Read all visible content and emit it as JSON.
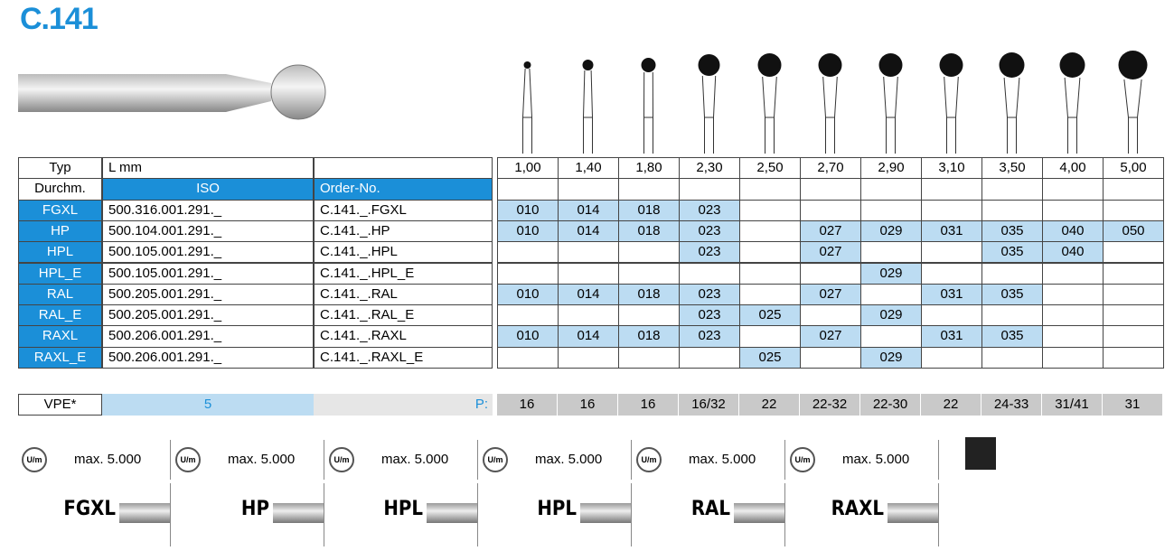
{
  "title": "C.141",
  "header": {
    "typ": "Typ",
    "lmm": "L mm",
    "sizes": [
      "1,00",
      "1,40",
      "1,80",
      "2,30",
      "2,50",
      "2,70",
      "2,90",
      "3,10",
      "3,50",
      "4,00",
      "5,00"
    ]
  },
  "subheader": {
    "durchm": "Durchm.",
    "iso": "ISO",
    "order": "Order-No."
  },
  "rows": [
    {
      "type": "FGXL",
      "iso": "500.316.001.291._",
      "order": "C.141._.FGXL",
      "codes": [
        "010",
        "014",
        "018",
        "023",
        null,
        null,
        null,
        null,
        null,
        null,
        null
      ]
    },
    {
      "type": "HP",
      "iso": "500.104.001.291._",
      "order": "C.141._.HP",
      "codes": [
        "010",
        "014",
        "018",
        "023",
        null,
        "027",
        "029",
        "031",
        "035",
        "040",
        "050"
      ]
    },
    {
      "type": "HPL",
      "iso": "500.105.001.291._",
      "order": "C.141._.HPL",
      "codes": [
        null,
        null,
        null,
        "023",
        null,
        "027",
        null,
        null,
        "035",
        "040",
        null
      ]
    },
    {
      "type": "HPL_E",
      "iso": "500.105.001.291._",
      "order": "C.141._.HPL_E",
      "codes": [
        null,
        null,
        null,
        null,
        null,
        null,
        "029",
        null,
        null,
        null,
        null
      ]
    },
    {
      "type": "RAL",
      "iso": "500.205.001.291._",
      "order": "C.141._.RAL",
      "codes": [
        "010",
        "014",
        "018",
        "023",
        null,
        "027",
        null,
        "031",
        "035",
        null,
        null
      ]
    },
    {
      "type": "RAL_E",
      "iso": "500.205.001.291._",
      "order": "C.141._.RAL_E",
      "codes": [
        null,
        null,
        null,
        "023",
        "025",
        null,
        "029",
        null,
        null,
        null,
        null
      ]
    },
    {
      "type": "RAXL",
      "iso": "500.206.001.291._",
      "order": "C.141._.RAXL",
      "codes": [
        "010",
        "014",
        "018",
        "023",
        null,
        "027",
        null,
        "031",
        "035",
        null,
        null
      ]
    },
    {
      "type": "RAXL_E",
      "iso": "500.206.001.291._",
      "order": "C.141._.RAXL_E",
      "codes": [
        null,
        null,
        null,
        null,
        "025",
        null,
        "029",
        null,
        null,
        null,
        null
      ]
    }
  ],
  "vpe": {
    "label": "VPE*",
    "value": "5",
    "p": "P:",
    "values": [
      "16",
      "16",
      "16",
      "16/32",
      "22",
      "22-32",
      "22-30",
      "22",
      "24-33",
      "31/41",
      "31"
    ]
  },
  "speeds": [
    {
      "unit": "U/m",
      "text": "max. 5.000"
    },
    {
      "unit": "U/m",
      "text": "max. 5.000"
    },
    {
      "unit": "U/m",
      "text": "max. 5.000"
    },
    {
      "unit": "U/m",
      "text": "max. 5.000"
    },
    {
      "unit": "U/m",
      "text": "max. 5.000"
    },
    {
      "unit": "U/m",
      "text": "max. 5.000"
    }
  ],
  "shanks": [
    "FGXL",
    "HP",
    "HPL",
    "HPL",
    "RAL",
    "RAXL"
  ]
}
